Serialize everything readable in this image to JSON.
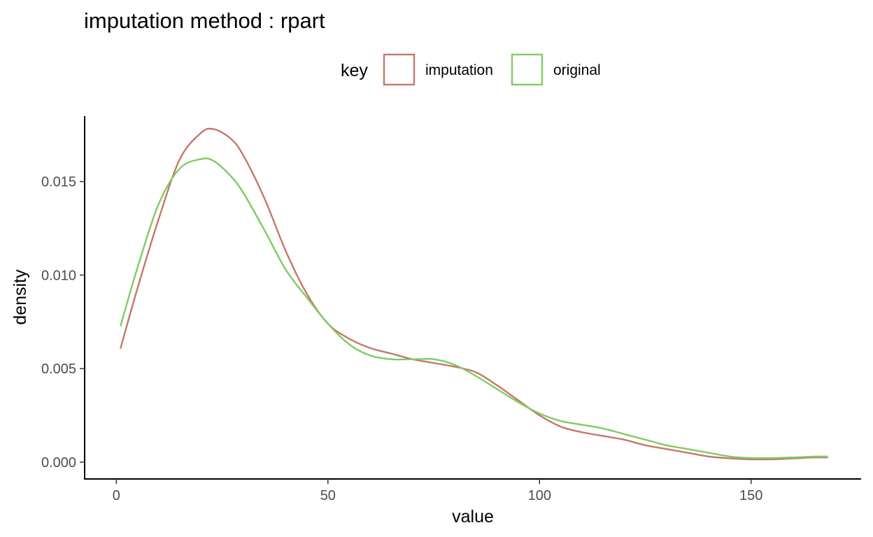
{
  "chart_data": {
    "type": "line",
    "title": "imputation method : rpart",
    "xlabel": "value",
    "ylabel": "density",
    "xlim": [
      -7.5,
      176
    ],
    "ylim": [
      -0.0009,
      0.0185
    ],
    "x_ticks": [
      0,
      50,
      100,
      150
    ],
    "x_tick_labels": [
      "0",
      "50",
      "100",
      "150"
    ],
    "y_ticks": [
      0,
      0.005,
      0.01,
      0.015
    ],
    "y_tick_labels": [
      "0.000",
      "0.005",
      "0.010",
      "0.015"
    ],
    "grid": false,
    "legend": {
      "title": "key",
      "placement": "top",
      "entries": [
        "imputation",
        "original"
      ]
    },
    "series": [
      {
        "name": "imputation",
        "color": "#C5786A",
        "x": [
          1,
          5,
          10,
          15,
          20,
          23,
          27,
          30,
          35,
          40,
          45,
          50,
          55,
          60,
          65,
          70,
          75,
          80,
          85,
          90,
          95,
          100,
          105,
          110,
          115,
          120,
          125,
          130,
          135,
          140,
          145,
          150,
          155,
          160,
          165,
          168
        ],
        "y": [
          0.0061,
          0.0093,
          0.013,
          0.0162,
          0.0176,
          0.0178,
          0.0173,
          0.0164,
          0.0141,
          0.0113,
          0.009,
          0.0074,
          0.0066,
          0.0061,
          0.0058,
          0.0055,
          0.0053,
          0.0051,
          0.0048,
          0.0041,
          0.0033,
          0.0025,
          0.0019,
          0.0016,
          0.0014,
          0.0012,
          0.0009,
          0.0007,
          0.0005,
          0.0003,
          0.0002,
          0.00015,
          0.00015,
          0.0002,
          0.00025,
          0.00025
        ]
      },
      {
        "name": "original",
        "color": "#7FCC62",
        "x": [
          1,
          5,
          10,
          15,
          20,
          23,
          27,
          30,
          35,
          40,
          45,
          50,
          55,
          60,
          65,
          70,
          75,
          80,
          85,
          90,
          95,
          100,
          105,
          110,
          115,
          120,
          125,
          130,
          135,
          140,
          145,
          150,
          155,
          160,
          165,
          168
        ],
        "y": [
          0.0073,
          0.0104,
          0.0138,
          0.0157,
          0.0162,
          0.0161,
          0.0153,
          0.0144,
          0.0124,
          0.0103,
          0.0088,
          0.0074,
          0.0063,
          0.0057,
          0.0055,
          0.0055,
          0.0055,
          0.0052,
          0.0046,
          0.0039,
          0.0032,
          0.0026,
          0.0022,
          0.002,
          0.0018,
          0.0015,
          0.0012,
          0.0009,
          0.0007,
          0.0005,
          0.0003,
          0.00022,
          0.00022,
          0.00025,
          0.0003,
          0.0003
        ]
      }
    ]
  }
}
